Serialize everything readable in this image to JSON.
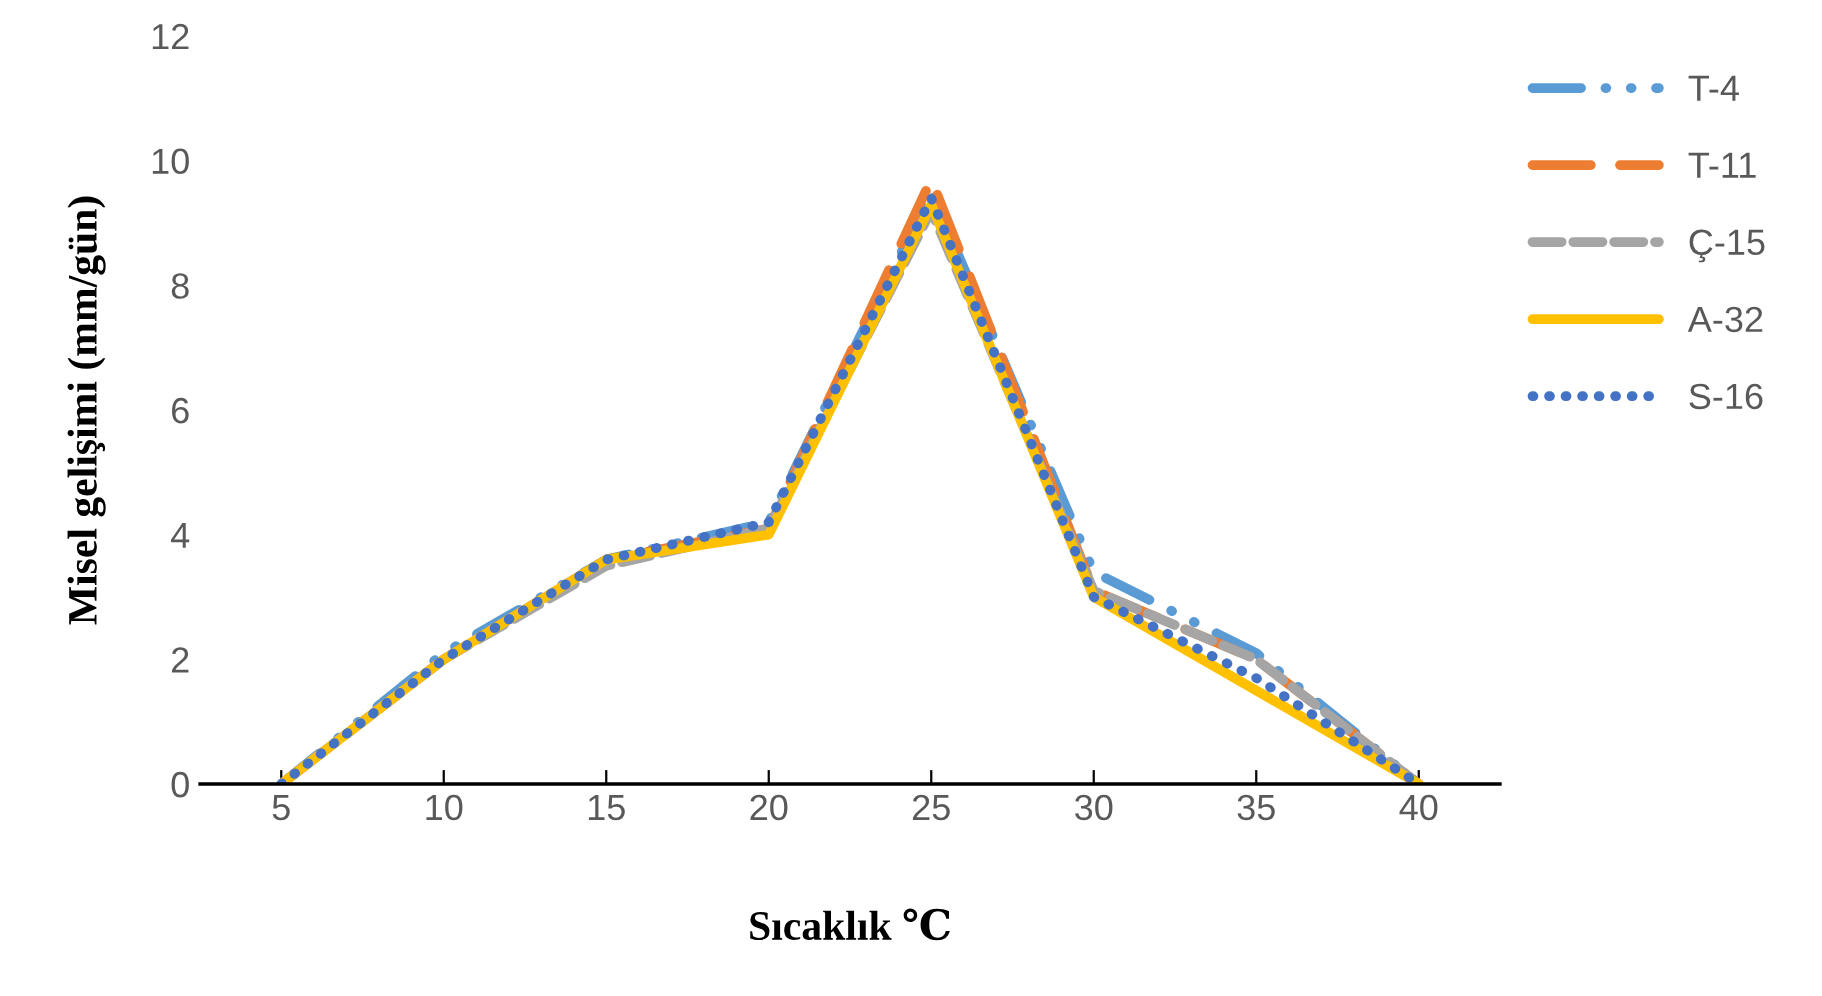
{
  "chart_data": {
    "type": "line",
    "xlabel": "Sıcaklık ℃",
    "ylabel": "Misel gelişimi (mm/gün)",
    "categories": [
      "5",
      "10",
      "15",
      "20",
      "25",
      "30",
      "35",
      "40"
    ],
    "ylim": [
      0,
      12
    ],
    "yticks": [
      0,
      2,
      4,
      6,
      8,
      10,
      12
    ],
    "grid": false,
    "legend": "right",
    "marker": "none",
    "series": [
      {
        "name": "T-4",
        "color": "#5b9bd5",
        "line_style": "dashdot",
        "values": [
          0,
          2.1,
          3.6,
          4.2,
          9.5,
          3.4,
          2.1,
          0
        ]
      },
      {
        "name": "T-11",
        "color": "#ed7d31",
        "line_style": "longdash",
        "values": [
          0,
          2.0,
          3.6,
          4.1,
          9.7,
          3.1,
          2.0,
          0
        ]
      },
      {
        "name": "Ç-15",
        "color": "#a5a5a5",
        "line_style": "dashed",
        "values": [
          0,
          2.0,
          3.5,
          4.1,
          9.2,
          3.1,
          2.0,
          0
        ]
      },
      {
        "name": "A-32",
        "color": "#ffc000",
        "line_style": "solid",
        "values": [
          0,
          2.0,
          3.6,
          4.0,
          9.3,
          3.0,
          1.5,
          0
        ]
      },
      {
        "name": "S-16",
        "color": "#4472c4",
        "line_style": "dotted",
        "values": [
          0,
          2.0,
          3.6,
          4.2,
          9.4,
          3.0,
          1.7,
          0
        ]
      }
    ]
  }
}
